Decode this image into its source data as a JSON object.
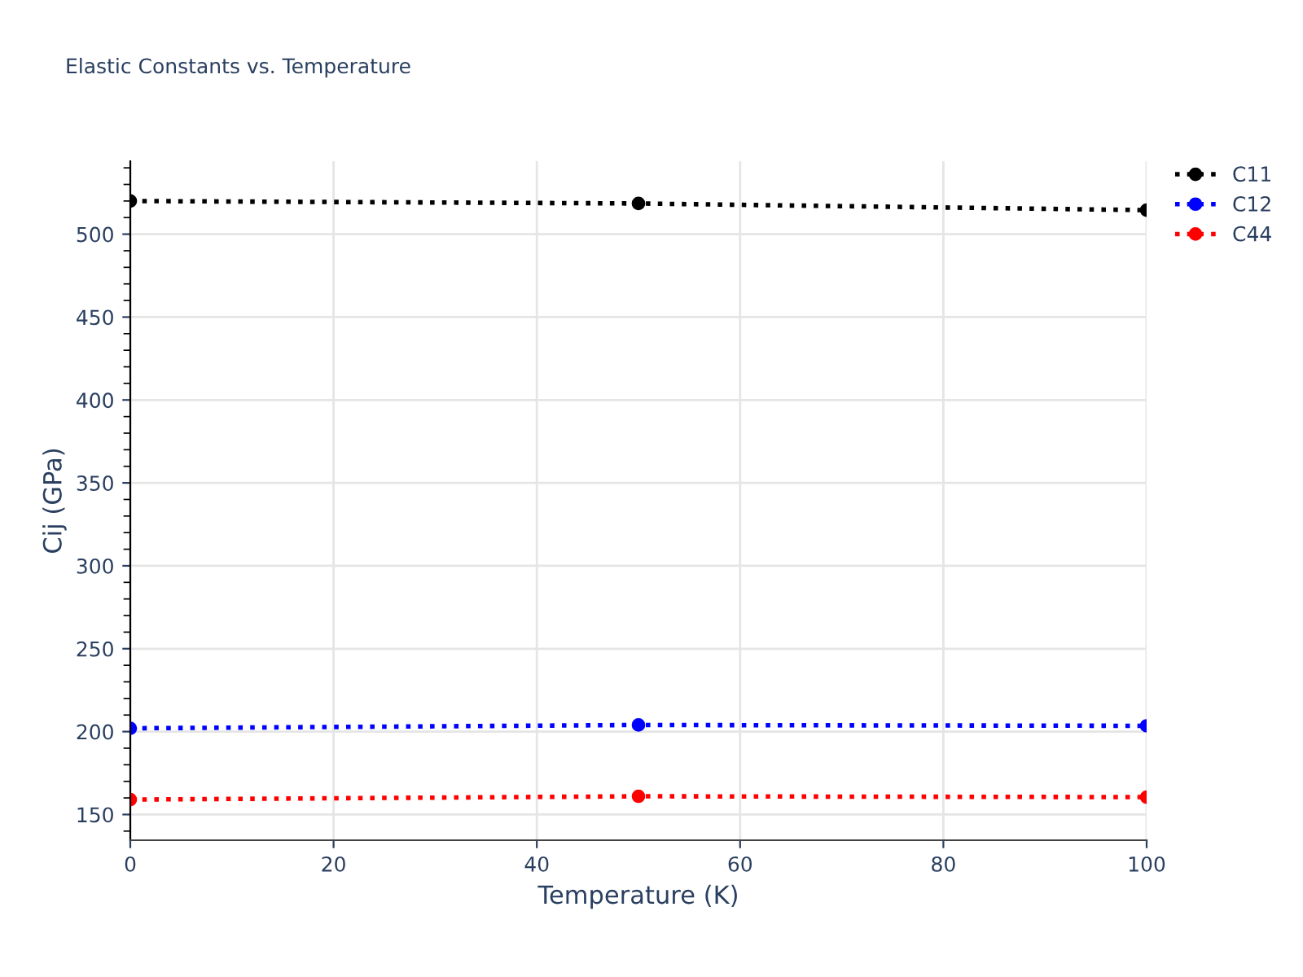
{
  "chart_data": {
    "type": "line",
    "title": "Elastic Constants vs. Temperature",
    "xlabel": "Temperature (K)",
    "ylabel": "Cij (GPa)",
    "x": [
      0,
      50,
      100
    ],
    "series": [
      {
        "name": "C11",
        "color": "#000000",
        "values": [
          520,
          518.5,
          514.5
        ]
      },
      {
        "name": "C12",
        "color": "#0000ff",
        "values": [
          202,
          204,
          203.5
        ]
      },
      {
        "name": "C44",
        "color": "#ff0000",
        "values": [
          159,
          161,
          160.5
        ]
      }
    ],
    "xlim": [
      0,
      100
    ],
    "xticks": [
      0,
      20,
      40,
      60,
      80,
      100
    ],
    "ylim": [
      134.5,
      544
    ],
    "yticks": [
      150,
      200,
      250,
      300,
      350,
      400,
      450,
      500
    ],
    "grid": true,
    "legend": "top right",
    "marker": "circle",
    "line_style": "dotted"
  }
}
